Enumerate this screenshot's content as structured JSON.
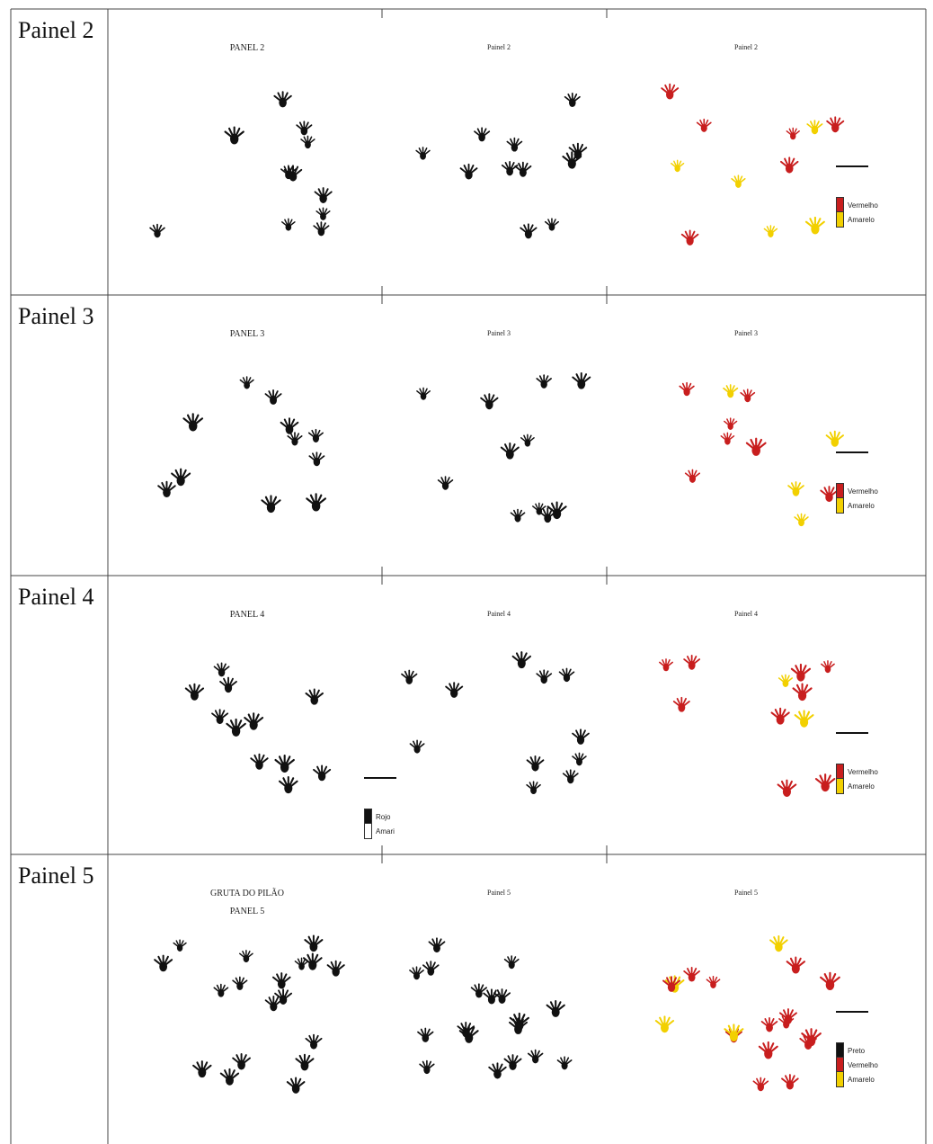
{
  "table": {
    "rows": [
      {
        "label": "Painel 2",
        "panels": [
          {
            "titles": [
              "PANEL 2"
            ]
          },
          {
            "titles": [
              "Painel 2"
            ]
          },
          {
            "titles": [
              "Painel 2"
            ],
            "legend": [
              "Vermelho",
              "Amarelo"
            ]
          }
        ]
      },
      {
        "label": "Painel 3",
        "panels": [
          {
            "titles": [
              "PANEL 3"
            ]
          },
          {
            "titles": [
              "Painel 3"
            ]
          },
          {
            "titles": [
              "Painel 3"
            ],
            "legend": [
              "Vermelho",
              "Amarelo"
            ]
          }
        ]
      },
      {
        "label": "Painel 4",
        "panels": [
          {
            "titles": [
              "PANEL 4"
            ],
            "legend": [
              "Rojo",
              "Amari"
            ]
          },
          {
            "titles": [
              "Painel 4"
            ]
          },
          {
            "titles": [
              "Painel 4"
            ],
            "legend": [
              "Vermelho",
              "Amarelo"
            ]
          }
        ]
      },
      {
        "label": "Painel 5",
        "panels": [
          {
            "titles": [
              "GRUTA DO PILÃO",
              "PANEL 5"
            ]
          },
          {
            "titles": [
              "Painel 5"
            ]
          },
          {
            "titles": [
              "Painel 5"
            ],
            "legend": [
              "Preto",
              "Vermelho",
              "Amarelo"
            ]
          }
        ]
      }
    ]
  }
}
